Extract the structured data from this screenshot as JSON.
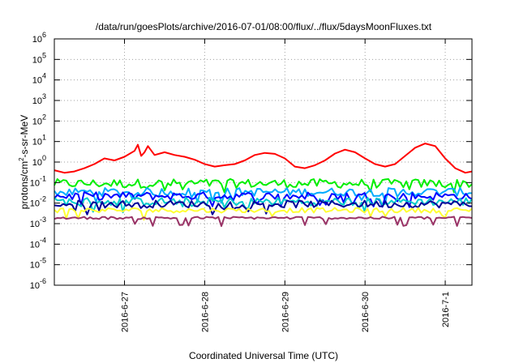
{
  "chart_data": {
    "type": "line",
    "title": "/data/run/goesPlots/archive/2016-07-01/08:00/flux/../flux/5daysMoonFluxes.txt",
    "xlabel": "Coordinated Universal Time (UTC)",
    "ylabel": {
      "base": "protons/cm",
      "sup": "2",
      "rest": "-s-sr-MeV"
    },
    "yscale": "log",
    "ylim": [
      1e-06,
      1000000.0
    ],
    "xlim": [
      "2016-06-26T03:00",
      "2016-07-01T08:00"
    ],
    "grid": true,
    "legend": "none",
    "y_ticks": [
      {
        "value": 1000000.0,
        "base": "10",
        "exp": "6"
      },
      {
        "value": 100000.0,
        "base": "10",
        "exp": "5"
      },
      {
        "value": 10000.0,
        "base": "10",
        "exp": "4"
      },
      {
        "value": 1000.0,
        "base": "10",
        "exp": "3"
      },
      {
        "value": 100.0,
        "base": "10",
        "exp": "2"
      },
      {
        "value": 10.0,
        "base": "10",
        "exp": "1"
      },
      {
        "value": 1.0,
        "base": "10",
        "exp": "0"
      },
      {
        "value": 0.1,
        "base": "10",
        "exp": "-1"
      },
      {
        "value": 0.01,
        "base": "10",
        "exp": "-2"
      },
      {
        "value": 0.001,
        "base": "10",
        "exp": "-3"
      },
      {
        "value": 0.0001,
        "base": "10",
        "exp": "-4"
      },
      {
        "value": 1e-05,
        "base": "10",
        "exp": "-5"
      },
      {
        "value": 1e-06,
        "base": "10",
        "exp": "-6"
      }
    ],
    "x_ticks": [
      {
        "value": "2016-06-27T00:00",
        "label": "2016-6-27"
      },
      {
        "value": "2016-06-28T00:00",
        "label": "2016-6-28"
      },
      {
        "value": "2016-06-29T00:00",
        "label": "2016-6-29"
      },
      {
        "value": "2016-06-30T00:00",
        "label": "2016-6-30"
      },
      {
        "value": "2016-07-01T00:00",
        "label": "2016-7-1"
      }
    ],
    "series": [
      {
        "color": "#ff0000",
        "points": [
          [
            "2016-06-26T03:00",
            0.4
          ],
          [
            "2016-06-26T06:00",
            0.3
          ],
          [
            "2016-06-26T09:00",
            0.35
          ],
          [
            "2016-06-26T12:00",
            0.5
          ],
          [
            "2016-06-26T15:00",
            0.8
          ],
          [
            "2016-06-26T18:00",
            1.5
          ],
          [
            "2016-06-26T21:00",
            1.2
          ],
          [
            "2016-06-27T00:00",
            1.8
          ],
          [
            "2016-06-27T03:00",
            3.5
          ],
          [
            "2016-06-27T04:00",
            7.0
          ],
          [
            "2016-06-27T05:00",
            2.0
          ],
          [
            "2016-06-27T06:00",
            3.0
          ],
          [
            "2016-06-27T07:00",
            6.0
          ],
          [
            "2016-06-27T09:00",
            2.2
          ],
          [
            "2016-06-27T12:00",
            3.0
          ],
          [
            "2016-06-27T15:00",
            2.2
          ],
          [
            "2016-06-27T18:00",
            1.8
          ],
          [
            "2016-06-27T21:00",
            1.3
          ],
          [
            "2016-06-28T00:00",
            0.8
          ],
          [
            "2016-06-28T03:00",
            0.6
          ],
          [
            "2016-06-28T06:00",
            0.7
          ],
          [
            "2016-06-28T09:00",
            0.8
          ],
          [
            "2016-06-28T12:00",
            1.2
          ],
          [
            "2016-06-28T15:00",
            2.2
          ],
          [
            "2016-06-28T18:00",
            2.8
          ],
          [
            "2016-06-28T21:00",
            2.5
          ],
          [
            "2016-06-29T00:00",
            1.5
          ],
          [
            "2016-06-29T03:00",
            0.6
          ],
          [
            "2016-06-29T06:00",
            0.5
          ],
          [
            "2016-06-29T09:00",
            0.7
          ],
          [
            "2016-06-29T12:00",
            1.2
          ],
          [
            "2016-06-29T15:00",
            2.6
          ],
          [
            "2016-06-29T18:00",
            4.0
          ],
          [
            "2016-06-29T21:00",
            3.0
          ],
          [
            "2016-06-30T00:00",
            1.5
          ],
          [
            "2016-06-30T03:00",
            0.8
          ],
          [
            "2016-06-30T06:00",
            0.6
          ],
          [
            "2016-06-30T09:00",
            0.8
          ],
          [
            "2016-06-30T12:00",
            2.0
          ],
          [
            "2016-06-30T15:00",
            5.0
          ],
          [
            "2016-06-30T18:00",
            8.0
          ],
          [
            "2016-06-30T21:00",
            6.0
          ],
          [
            "2016-07-01T00:00",
            1.5
          ],
          [
            "2016-07-01T03:00",
            0.5
          ],
          [
            "2016-07-01T06:00",
            0.3
          ],
          [
            "2016-07-01T08:00",
            0.35
          ]
        ]
      },
      {
        "color": "#00ee00",
        "mean": 0.09,
        "spread": 0.22
      },
      {
        "color": "#00aaff",
        "mean": 0.035,
        "spread": 0.2
      },
      {
        "color": "#0000ff",
        "mean": 0.022,
        "spread": 0.2
      },
      {
        "color": "#00cccc",
        "mean": 0.012,
        "spread": 0.2
      },
      {
        "color": "#000099",
        "mean": 0.009,
        "spread": 0.18
      },
      {
        "color": "#ffff33",
        "mean": 0.0045,
        "spread": 0.12
      },
      {
        "color": "#993366",
        "mean": 0.0019,
        "spread": 0.06
      }
    ]
  }
}
